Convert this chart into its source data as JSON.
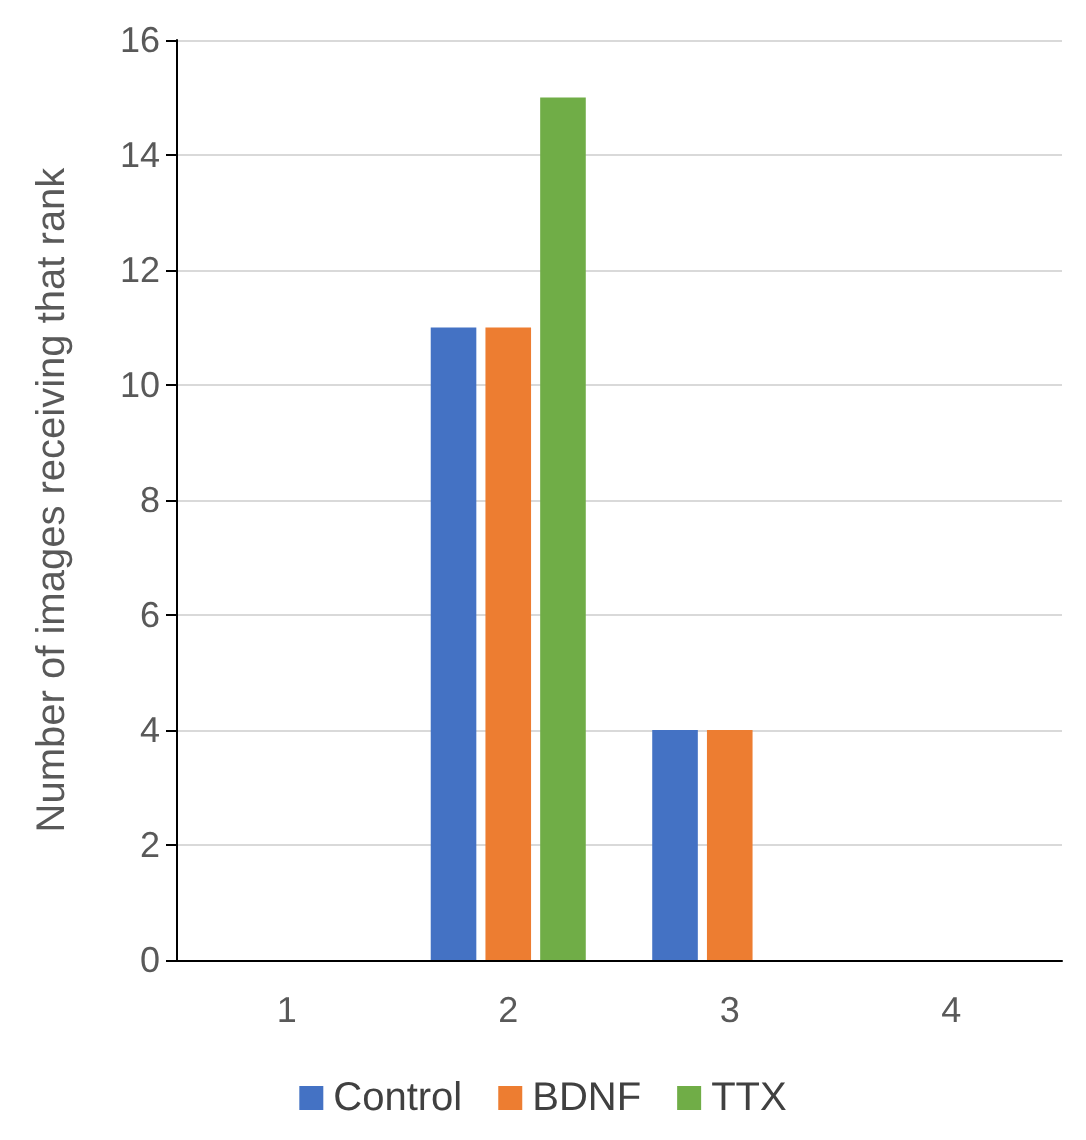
{
  "chart_data": {
    "type": "bar",
    "ylabel": "Number of images receiving that rank",
    "categories": [
      "1",
      "2",
      "3",
      "4"
    ],
    "series": [
      {
        "name": "Control",
        "color": "#4472c4",
        "values": [
          0,
          11,
          4,
          0
        ]
      },
      {
        "name": "BDNF",
        "color": "#ed7d31",
        "values": [
          0,
          11,
          4,
          0
        ]
      },
      {
        "name": "TTX",
        "color": "#70ad47",
        "values": [
          0,
          15,
          0,
          0
        ]
      }
    ],
    "ylim": [
      0,
      16
    ],
    "yticks": [
      0,
      2,
      4,
      6,
      8,
      10,
      12,
      14,
      16
    ],
    "grid": "y",
    "legend": "bottom"
  }
}
